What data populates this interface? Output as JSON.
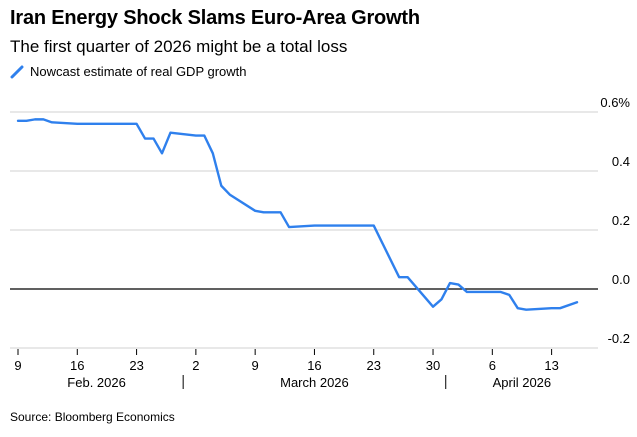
{
  "chart_data": {
    "type": "line",
    "title": "Iran Energy Shock Slams Euro-Area Growth",
    "subtitle": "The first quarter of 2026 might be a total loss",
    "source": "Source: Bloomberg Economics",
    "series": [
      {
        "name": "Nowcast estimate of real GDP growth",
        "color": "#2f80ed",
        "points": [
          [
            "2026-02-09",
            0.57
          ],
          [
            "2026-02-10",
            0.57
          ],
          [
            "2026-02-11",
            0.575
          ],
          [
            "2026-02-12",
            0.575
          ],
          [
            "2026-02-13",
            0.565
          ],
          [
            "2026-02-16",
            0.56
          ],
          [
            "2026-02-23",
            0.56
          ],
          [
            "2026-02-24",
            0.51
          ],
          [
            "2026-02-25",
            0.51
          ],
          [
            "2026-02-26",
            0.46
          ],
          [
            "2026-02-27",
            0.53
          ],
          [
            "2026-03-02",
            0.52
          ],
          [
            "2026-03-03",
            0.52
          ],
          [
            "2026-03-04",
            0.46
          ],
          [
            "2026-03-05",
            0.35
          ],
          [
            "2026-03-06",
            0.32
          ],
          [
            "2026-03-09",
            0.265
          ],
          [
            "2026-03-10",
            0.26
          ],
          [
            "2026-03-11",
            0.26
          ],
          [
            "2026-03-12",
            0.26
          ],
          [
            "2026-03-13",
            0.21
          ],
          [
            "2026-03-16",
            0.215
          ],
          [
            "2026-03-17",
            0.215
          ],
          [
            "2026-03-18",
            0.215
          ],
          [
            "2026-03-19",
            0.215
          ],
          [
            "2026-03-20",
            0.215
          ],
          [
            "2026-03-23",
            0.215
          ],
          [
            "2026-03-26",
            0.04
          ],
          [
            "2026-03-27",
            0.04
          ],
          [
            "2026-03-30",
            -0.06
          ],
          [
            "2026-03-31",
            -0.035
          ],
          [
            "2026-04-01",
            0.02
          ],
          [
            "2026-04-02",
            0.015
          ],
          [
            "2026-04-03",
            -0.01
          ],
          [
            "2026-04-06",
            -0.01
          ],
          [
            "2026-04-07",
            -0.01
          ],
          [
            "2026-04-08",
            -0.02
          ],
          [
            "2026-04-09",
            -0.065
          ],
          [
            "2026-04-10",
            -0.07
          ],
          [
            "2026-04-13",
            -0.065
          ],
          [
            "2026-04-14",
            -0.065
          ],
          [
            "2026-04-16",
            -0.045
          ]
        ]
      }
    ],
    "y_axis": {
      "min": -0.2,
      "max": 0.6,
      "ticks": [
        {
          "value": 0.6,
          "label": "0.6%"
        },
        {
          "value": 0.4,
          "label": "0.4"
        },
        {
          "value": 0.2,
          "label": "0.2"
        },
        {
          "value": 0.0,
          "label": "0.0"
        },
        {
          "value": -0.2,
          "label": "-0.2"
        }
      ],
      "grid": true,
      "position": "right"
    },
    "x_axis": {
      "type": "date",
      "min": "2026-02-09",
      "max": "2026-04-16",
      "ticks": [
        {
          "date": "2026-02-09",
          "label": "9"
        },
        {
          "date": "2026-02-16",
          "label": "16"
        },
        {
          "date": "2026-02-23",
          "label": "23"
        },
        {
          "date": "2026-03-02",
          "label": "2"
        },
        {
          "date": "2026-03-09",
          "label": "9"
        },
        {
          "date": "2026-03-16",
          "label": "16"
        },
        {
          "date": "2026-03-23",
          "label": "23"
        },
        {
          "date": "2026-03-30",
          "label": "30"
        },
        {
          "date": "2026-04-06",
          "label": "6"
        },
        {
          "date": "2026-04-13",
          "label": "13"
        }
      ],
      "month_labels": [
        {
          "label": "Feb. 2026"
        },
        {
          "label": "March 2026"
        },
        {
          "label": "April 2026"
        }
      ],
      "month_boundaries": [
        "2026-02-28",
        "2026-03-31"
      ]
    }
  }
}
